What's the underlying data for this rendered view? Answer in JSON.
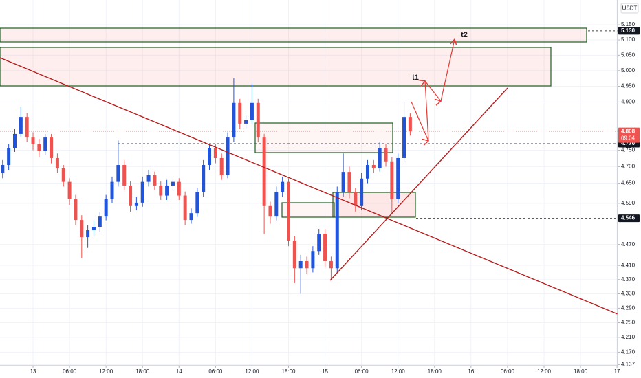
{
  "chart_data": {
    "type": "candlestick",
    "currency": "USDT",
    "log": true,
    "grid": true,
    "up_color": "#2154d9",
    "down_color": "#ef5350",
    "ylim": [
      4.134,
      5.233
    ],
    "yticks": [
      {
        "value": 5.15,
        "label": "5.150"
      },
      {
        "value": 5.1,
        "label": "5.100"
      },
      {
        "value": 5.05,
        "label": "5.050"
      },
      {
        "value": 5.0,
        "label": "5.000"
      },
      {
        "value": 4.95,
        "label": "4.950"
      },
      {
        "value": 4.9,
        "label": "4.900"
      },
      {
        "value": 4.75,
        "label": "4.750"
      },
      {
        "value": 4.7,
        "label": "4.700"
      },
      {
        "value": 4.65,
        "label": "4.650"
      },
      {
        "value": 4.59,
        "label": "4.590"
      },
      {
        "value": 4.47,
        "label": "4.470"
      },
      {
        "value": 4.41,
        "label": "4.410"
      },
      {
        "value": 4.37,
        "label": "4.370"
      },
      {
        "value": 4.33,
        "label": "4.330"
      },
      {
        "value": 4.29,
        "label": "4.290"
      },
      {
        "value": 4.25,
        "label": "4.250"
      },
      {
        "value": 4.21,
        "label": "4.210"
      },
      {
        "value": 4.17,
        "label": "4.170"
      },
      {
        "value": 4.137,
        "label": "4.137"
      }
    ],
    "xlim": [
      -5.43,
      96.1
    ],
    "xticks": [
      {
        "value": 0,
        "label": "13"
      },
      {
        "value": 6,
        "label": "06:00"
      },
      {
        "value": 12,
        "label": "12:00"
      },
      {
        "value": 18,
        "label": "18:00"
      },
      {
        "value": 24,
        "label": "14"
      },
      {
        "value": 30,
        "label": "06:00"
      },
      {
        "value": 36,
        "label": "12:00"
      },
      {
        "value": 42,
        "label": "18:00"
      },
      {
        "value": 48,
        "label": "15"
      },
      {
        "value": 54,
        "label": "06:00"
      },
      {
        "value": 60,
        "label": "12:00"
      },
      {
        "value": 66,
        "label": "18:00"
      },
      {
        "value": 72,
        "label": "16"
      },
      {
        "value": 78,
        "label": "06:00"
      },
      {
        "value": 84,
        "label": "12:00"
      },
      {
        "value": 90,
        "label": "18:00"
      },
      {
        "value": 96,
        "label": "17"
      }
    ],
    "candles": {
      "x": [
        -5,
        -4,
        -3,
        -2,
        -1,
        0,
        1,
        2,
        3,
        4,
        5,
        6,
        7,
        8,
        9,
        10,
        11,
        12,
        13,
        14,
        15,
        16,
        17,
        18,
        19,
        20,
        21,
        22,
        23,
        24,
        25,
        26,
        27,
        28,
        29,
        30,
        31,
        32,
        33,
        34,
        35,
        36,
        37,
        38,
        39,
        40,
        41,
        42,
        43,
        44,
        45,
        46,
        47,
        48,
        49,
        50,
        51,
        52,
        53,
        54,
        55,
        56,
        57,
        58,
        59,
        60,
        61,
        62
      ],
      "open": [
        4.68,
        4.705,
        4.757,
        4.8,
        4.853,
        4.789,
        4.768,
        4.747,
        4.789,
        4.726,
        4.695,
        4.654,
        4.602,
        4.541,
        4.491,
        4.511,
        4.521,
        4.551,
        4.602,
        4.654,
        4.705,
        4.643,
        4.582,
        4.592,
        4.654,
        4.674,
        4.643,
        4.613,
        4.643,
        4.654,
        4.613,
        4.541,
        4.561,
        4.623,
        4.705,
        4.757,
        4.726,
        4.674,
        4.789,
        4.897,
        4.832,
        4.843,
        4.897,
        4.789,
        4.582,
        4.551,
        4.623,
        4.654,
        4.481,
        4.402,
        4.422,
        4.402,
        4.451,
        4.501,
        4.422,
        4.402,
        4.623,
        4.684,
        4.623,
        4.582,
        4.664,
        4.705,
        4.695,
        4.757,
        4.716,
        4.602,
        4.726,
        4.853
      ],
      "high": [
        4.72,
        4.77,
        4.815,
        4.885,
        4.865,
        4.805,
        4.785,
        4.8,
        4.8,
        4.74,
        4.705,
        4.665,
        4.615,
        4.555,
        4.525,
        4.54,
        4.565,
        4.615,
        4.67,
        4.78,
        4.72,
        4.655,
        4.61,
        4.67,
        4.69,
        4.685,
        4.655,
        4.66,
        4.67,
        4.665,
        4.625,
        4.575,
        4.635,
        4.72,
        4.77,
        4.77,
        4.74,
        4.805,
        4.975,
        4.91,
        4.86,
        4.96,
        4.91,
        4.8,
        4.595,
        4.64,
        4.67,
        4.665,
        4.495,
        4.44,
        4.435,
        4.465,
        4.515,
        4.515,
        4.435,
        4.64,
        4.74,
        4.7,
        4.635,
        4.68,
        4.72,
        4.72,
        4.775,
        4.77,
        4.73,
        4.74,
        4.9,
        4.865
      ],
      "low": [
        4.665,
        4.69,
        4.745,
        4.79,
        4.775,
        4.75,
        4.73,
        4.735,
        4.71,
        4.68,
        4.64,
        4.585,
        4.525,
        4.43,
        4.46,
        4.495,
        4.505,
        4.54,
        4.59,
        4.64,
        4.63,
        4.565,
        4.57,
        4.58,
        4.64,
        4.63,
        4.6,
        4.6,
        4.63,
        4.6,
        4.525,
        4.53,
        4.55,
        4.61,
        4.69,
        4.71,
        4.66,
        4.665,
        4.775,
        4.815,
        4.815,
        4.83,
        4.775,
        4.5,
        4.53,
        4.54,
        4.61,
        4.465,
        4.36,
        4.33,
        4.385,
        4.39,
        4.44,
        4.405,
        4.37,
        4.39,
        4.61,
        4.605,
        4.565,
        4.57,
        4.65,
        4.68,
        4.685,
        4.7,
        4.56,
        4.59,
        4.715,
        4.795
      ],
      "close": [
        4.705,
        4.757,
        4.8,
        4.853,
        4.789,
        4.768,
        4.747,
        4.789,
        4.726,
        4.695,
        4.654,
        4.602,
        4.541,
        4.491,
        4.511,
        4.521,
        4.551,
        4.602,
        4.654,
        4.705,
        4.643,
        4.582,
        4.592,
        4.654,
        4.674,
        4.643,
        4.613,
        4.643,
        4.654,
        4.613,
        4.541,
        4.561,
        4.623,
        4.705,
        4.757,
        4.726,
        4.674,
        4.789,
        4.897,
        4.832,
        4.843,
        4.897,
        4.789,
        4.582,
        4.551,
        4.623,
        4.654,
        4.481,
        4.402,
        4.422,
        4.402,
        4.451,
        4.501,
        4.422,
        4.402,
        4.623,
        4.684,
        4.623,
        4.582,
        4.664,
        4.705,
        4.695,
        4.757,
        4.716,
        4.602,
        4.726,
        4.853,
        4.808
      ]
    },
    "price_lines": [
      {
        "value": 5.13,
        "label": "5.130",
        "color": "#131722"
      },
      {
        "value": 4.77,
        "label": "4.770",
        "color": "#131722"
      },
      {
        "value": 4.546,
        "label": "4.546",
        "color": "#131722"
      },
      {
        "value": 4.808,
        "label": "4.808",
        "color": "#ef5350"
      }
    ],
    "countdown": "09:04",
    "annotations": [
      "t1",
      "t2"
    ]
  }
}
